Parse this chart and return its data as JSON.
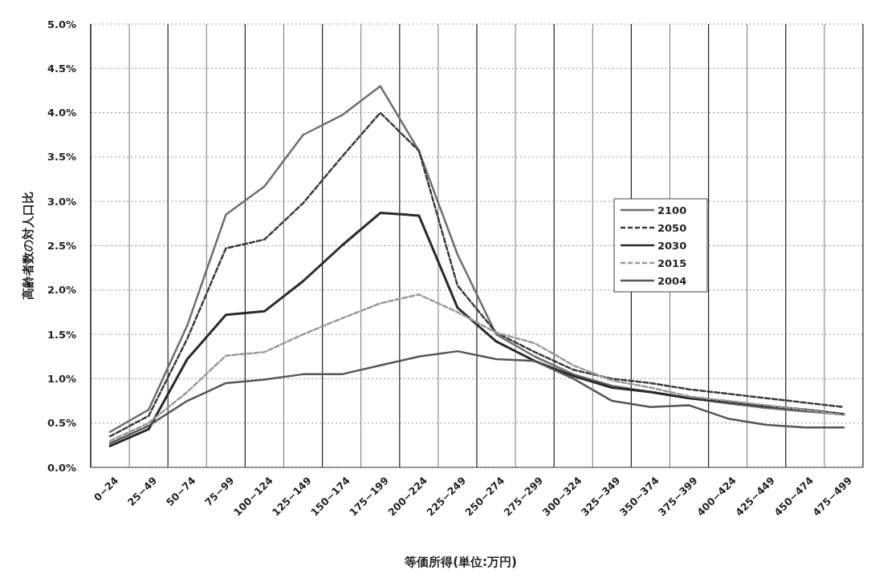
{
  "chart_data": {
    "type": "line",
    "xlabel": "等価所得(単位:万円)",
    "ylabel": "高齢者数の対人口比",
    "categories": [
      "0−24",
      "25−49",
      "50−74",
      "75−99",
      "100−124",
      "125−149",
      "150−174",
      "175−199",
      "200−224",
      "225−249",
      "250−274",
      "275−299",
      "300−324",
      "325−349",
      "350−374",
      "375−399",
      "400−424",
      "425−449",
      "450−474",
      "475−499"
    ],
    "ylim": [
      0,
      5
    ],
    "yticks": [
      {
        "value": 0,
        "label": "0.0%"
      },
      {
        "value": 0.5,
        "label": "0.5%"
      },
      {
        "value": 1,
        "label": "1.0%"
      },
      {
        "value": 1.5,
        "label": "1.5%"
      },
      {
        "value": 2,
        "label": "2.0%"
      },
      {
        "value": 2.5,
        "label": "2.5%"
      },
      {
        "value": 3,
        "label": "3.0%"
      },
      {
        "value": 3.5,
        "label": "3.5%"
      },
      {
        "value": 4,
        "label": "4.0%"
      },
      {
        "value": 4.5,
        "label": "4.5%"
      },
      {
        "value": 5,
        "label": "5.0%"
      }
    ],
    "grid": true,
    "legend": "right",
    "marker": "none",
    "series": [
      {
        "name": "2100",
        "color": "#6e6e6e",
        "line_style": "solid",
        "values": [
          0.4,
          0.65,
          1.6,
          2.85,
          3.17,
          3.75,
          3.97,
          4.3,
          3.57,
          2.4,
          1.5,
          1.25,
          1.05,
          0.92,
          0.85,
          0.78,
          0.72,
          0.67,
          0.63,
          0.6
        ]
      },
      {
        "name": "2050",
        "color": "#3a3a3a",
        "line_style": "dashed",
        "values": [
          0.35,
          0.58,
          1.45,
          2.47,
          2.57,
          2.98,
          3.5,
          4.0,
          3.57,
          2.05,
          1.52,
          1.3,
          1.1,
          1.0,
          0.95,
          0.88,
          0.83,
          0.78,
          0.73,
          0.68
        ]
      },
      {
        "name": "2030",
        "color": "#2a2a2a",
        "line_style": "solid",
        "values": [
          0.24,
          0.43,
          1.22,
          1.72,
          1.76,
          2.1,
          2.5,
          2.87,
          2.84,
          1.8,
          1.42,
          1.2,
          1.03,
          0.9,
          0.85,
          0.78,
          0.74,
          0.69,
          0.65,
          0.6
        ]
      },
      {
        "name": "2015",
        "color": "#999999",
        "line_style": "dashed",
        "values": [
          0.3,
          0.5,
          0.85,
          1.26,
          1.3,
          1.5,
          1.68,
          1.85,
          1.95,
          1.75,
          1.52,
          1.4,
          1.15,
          0.98,
          0.9,
          0.8,
          0.75,
          0.7,
          0.65,
          0.59
        ]
      },
      {
        "name": "2004",
        "color": "#555555",
        "line_style": "solid",
        "values": [
          0.27,
          0.47,
          0.75,
          0.95,
          0.99,
          1.05,
          1.05,
          1.15,
          1.25,
          1.31,
          1.22,
          1.2,
          1.0,
          0.75,
          0.68,
          0.7,
          0.55,
          0.48,
          0.45,
          0.45
        ]
      }
    ]
  }
}
